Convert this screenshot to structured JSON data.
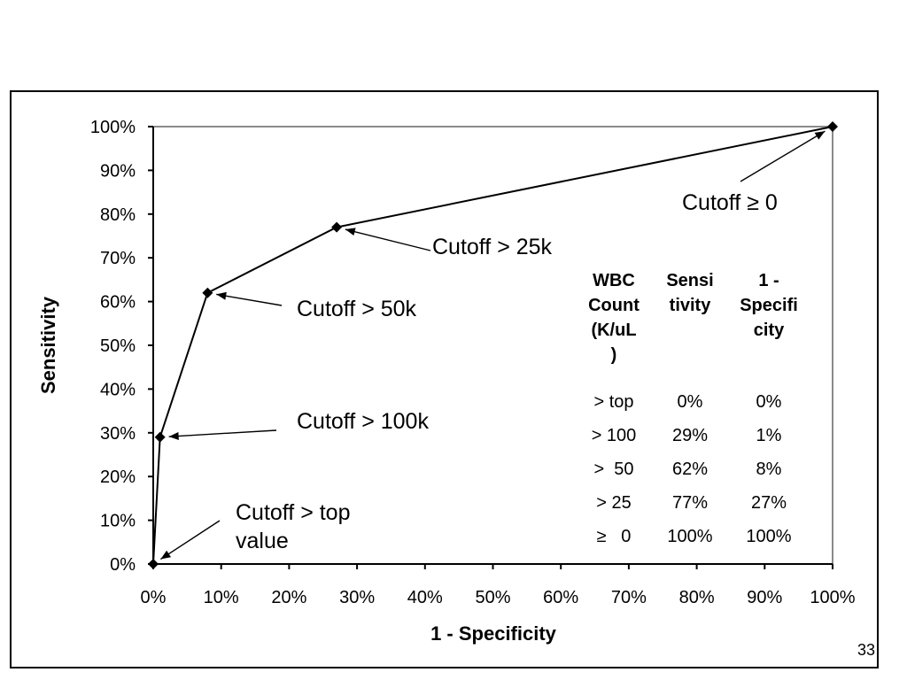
{
  "chart_data": {
    "type": "line",
    "xlabel": "1 - Specificity",
    "ylabel": "Sensitivity",
    "xlim": [
      0,
      100
    ],
    "ylim": [
      0,
      100
    ],
    "x_ticks": [
      "0%",
      "10%",
      "20%",
      "30%",
      "40%",
      "50%",
      "60%",
      "70%",
      "80%",
      "90%",
      "100%"
    ],
    "y_ticks": [
      "0%",
      "10%",
      "20%",
      "30%",
      "40%",
      "50%",
      "60%",
      "70%",
      "80%",
      "90%",
      "100%"
    ],
    "grid": false,
    "series": [
      {
        "x": [
          0,
          1,
          8,
          27,
          100
        ],
        "y": [
          0,
          29,
          62,
          77,
          100
        ],
        "marker": "diamond",
        "color": "#000000"
      }
    ],
    "annotations": [
      {
        "text": "Cutoff ≥ 0",
        "point": [
          100,
          100
        ]
      },
      {
        "text": "Cutoff > 25k",
        "point": [
          27,
          77
        ]
      },
      {
        "text": "Cutoff > 50k",
        "point": [
          8,
          62
        ]
      },
      {
        "text": "Cutoff > 100k",
        "point": [
          1,
          29
        ]
      },
      {
        "text": "Cutoff > top\nvalue",
        "point": [
          0,
          0
        ]
      }
    ]
  },
  "table": {
    "headers": [
      "WBC\nCount\n(K/uL\n)",
      "Sensi\ntivity",
      "1 -\nSpecifi\ncity"
    ],
    "rows": [
      [
        "> top",
        "0%",
        "0%"
      ],
      [
        "> 100",
        "29%",
        "1%"
      ],
      [
        ">  50",
        "62%",
        "8%"
      ],
      [
        "> 25",
        "77%",
        "27%"
      ],
      [
        "≥   0",
        "100%",
        "100%"
      ]
    ]
  },
  "page_number": "33"
}
